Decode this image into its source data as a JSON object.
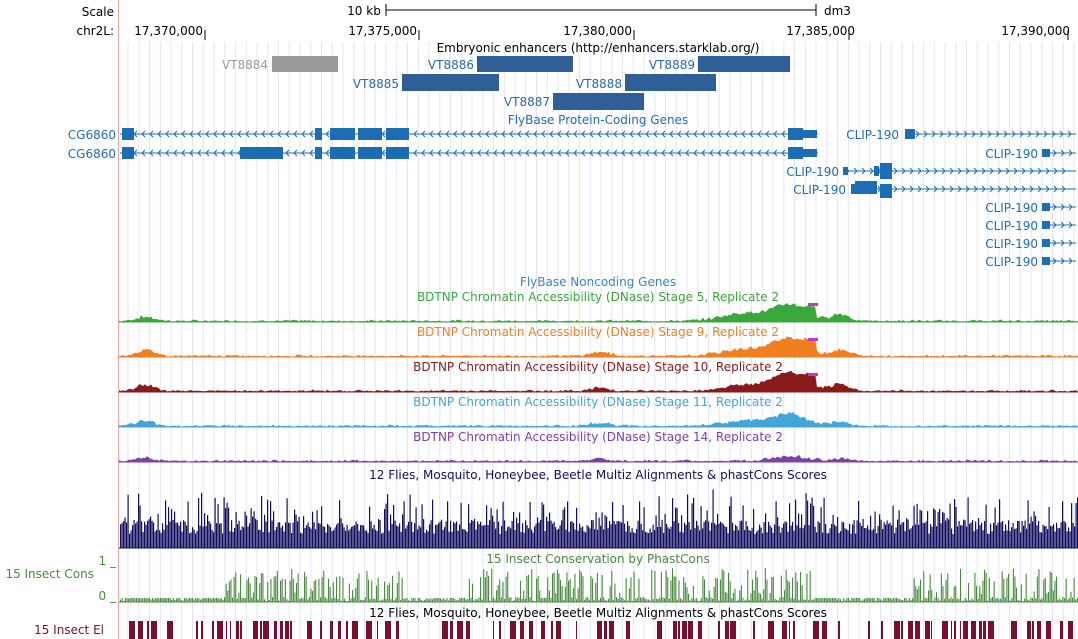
{
  "header": {
    "scale_label": "Scale",
    "scale_value": "10 kb",
    "assembly": "dm3",
    "chrom_label": "chr2L:",
    "positions": [
      "17,370,000",
      "17,375,000",
      "17,380,000",
      "17,385,000",
      "17,390,000"
    ]
  },
  "tracks": {
    "enhancers": {
      "title": "Embryonic enhancers (http://enhancers.starklab.org/)",
      "items": [
        "VT8884",
        "VT8885",
        "VT8886",
        "VT8887",
        "VT8888",
        "VT8889"
      ]
    },
    "genes": {
      "title": "FlyBase Protein-Coding Genes",
      "items": [
        "CG6860",
        "CG6860",
        "CLIP-190",
        "CLIP-190",
        "CLIP-190",
        "CLIP-190",
        "CLIP-190",
        "CLIP-190",
        "CLIP-190",
        "CLIP-190"
      ]
    },
    "noncoding": {
      "title": "FlyBase Noncoding Genes"
    },
    "dnase": [
      {
        "title": "BDTNP Chromatin Accessibility (DNase) Stage 5, Replicate 2",
        "color": "#3aa83a"
      },
      {
        "title": "BDTNP Chromatin Accessibility (DNase) Stage 9, Replicate 2",
        "color": "#f07f1f"
      },
      {
        "title": "BDTNP Chromatin Accessibility (DNase) Stage 10, Replicate 2",
        "color": "#8b1a1a"
      },
      {
        "title": "BDTNP Chromatin Accessibility (DNase) Stage 11, Replicate 2",
        "color": "#42a6d8"
      },
      {
        "title": "BDTNP Chromatin Accessibility (DNase) Stage 14, Replicate 2",
        "color": "#7d3fa8"
      }
    ],
    "multiz": {
      "title": "12 Flies, Mosquito, Honeybee, Beetle Multiz Alignments & phastCons Scores",
      "color": "#10105e"
    },
    "cons": {
      "title": "15 Insect Conservation by PhastCons",
      "side_label": "15 Insect Cons",
      "max_label": "1 _",
      "min_label": "0 _",
      "color": "#4a8a3c"
    },
    "elements": {
      "title": "12 Flies, Mosquito, Honeybee, Beetle Multiz Alignments & phastCons Scores",
      "side_label": "15 Insect El",
      "color": "#7a1030"
    }
  }
}
